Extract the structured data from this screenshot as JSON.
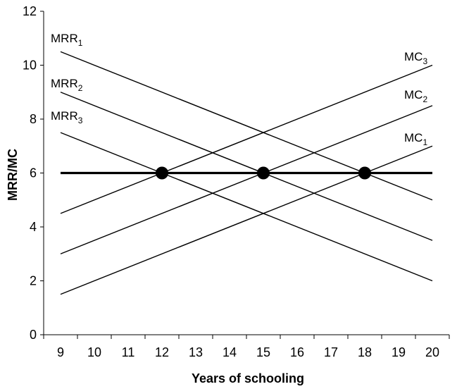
{
  "chart_data": {
    "type": "line",
    "title": "",
    "xlabel": "Years of schooling",
    "ylabel": "MRR/MC",
    "x_ticks": [
      9,
      10,
      11,
      12,
      13,
      14,
      15,
      16,
      17,
      18,
      19,
      20
    ],
    "y_ticks": [
      0,
      2,
      4,
      6,
      8,
      10,
      12
    ],
    "xlim": [
      8.5,
      20.5
    ],
    "ylim": [
      0,
      12
    ],
    "grid": false,
    "series": [
      {
        "name": "MRR1",
        "label_main": "MRR",
        "label_sub": "1",
        "x": [
          9,
          20
        ],
        "y": [
          10.5,
          5.0
        ]
      },
      {
        "name": "MRR2",
        "label_main": "MRR",
        "label_sub": "2",
        "x": [
          9,
          20
        ],
        "y": [
          9.0,
          3.5
        ]
      },
      {
        "name": "MRR3",
        "label_main": "MRR",
        "label_sub": "3",
        "x": [
          9,
          20
        ],
        "y": [
          7.5,
          2.0
        ]
      },
      {
        "name": "MC1",
        "label_main": "MC",
        "label_sub": "1",
        "x": [
          9,
          20
        ],
        "y": [
          1.5,
          7.0
        ]
      },
      {
        "name": "MC2",
        "label_main": "MC",
        "label_sub": "2",
        "x": [
          9,
          20
        ],
        "y": [
          3.0,
          8.5
        ]
      },
      {
        "name": "MC3",
        "label_main": "MC",
        "label_sub": "3",
        "x": [
          9,
          20
        ],
        "y": [
          4.5,
          10.0
        ]
      }
    ],
    "reference_line": {
      "x": [
        9,
        20
      ],
      "y": [
        6,
        6
      ]
    },
    "equilibrium_points": [
      {
        "x": 12,
        "y": 6
      },
      {
        "x": 15,
        "y": 6
      },
      {
        "x": 18,
        "y": 6
      }
    ]
  }
}
